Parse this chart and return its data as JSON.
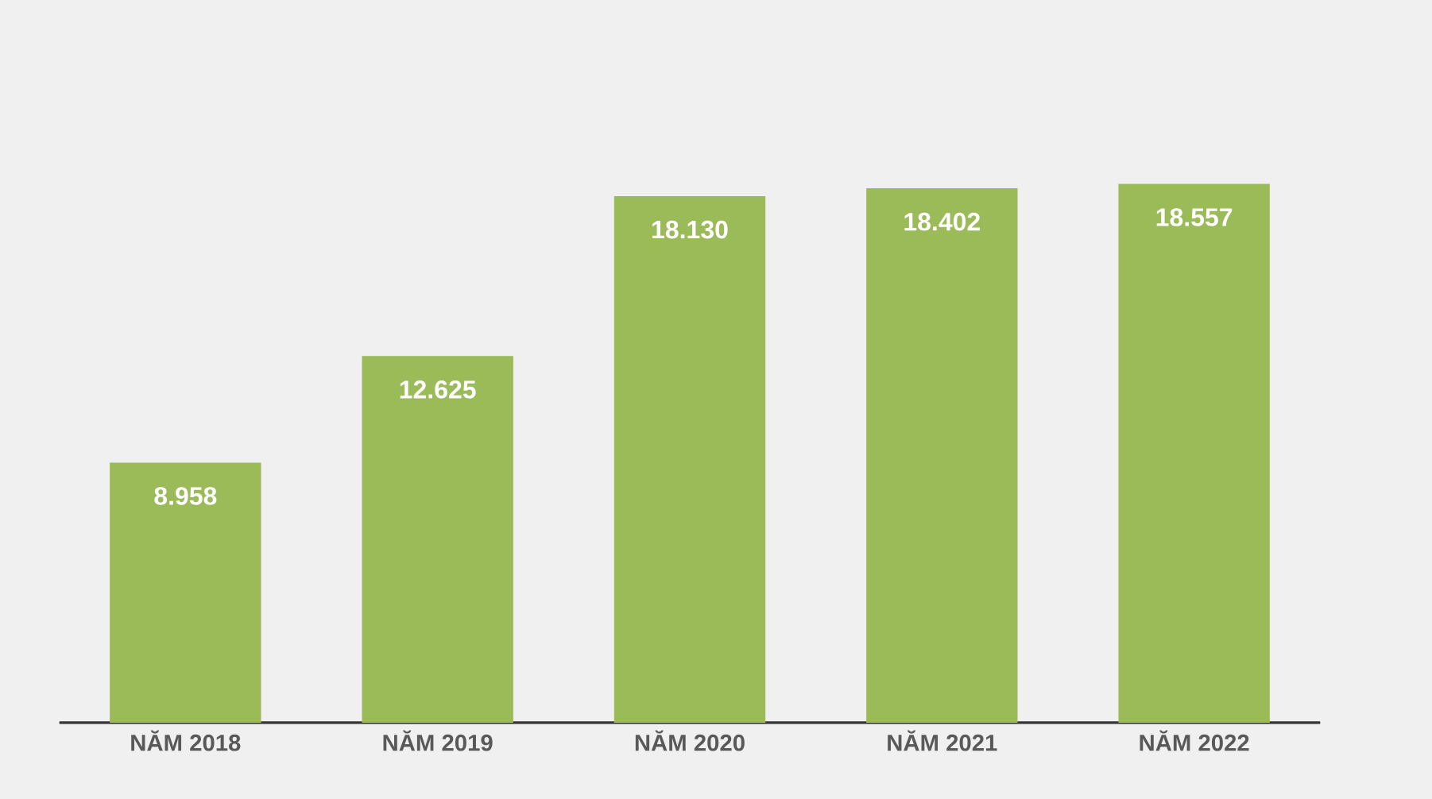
{
  "chart_data": {
    "type": "bar",
    "categories": [
      "NĂM 2018",
      "NĂM 2019",
      "NĂM 2020",
      "NĂM 2021",
      "NĂM 2022"
    ],
    "values": [
      8958,
      12625,
      18130,
      18402,
      18557
    ],
    "value_labels": [
      "8.958",
      "12.625",
      "18.130",
      "18.402",
      "18.557"
    ],
    "color": "#9bbb59",
    "tick_labels": "x"
  }
}
